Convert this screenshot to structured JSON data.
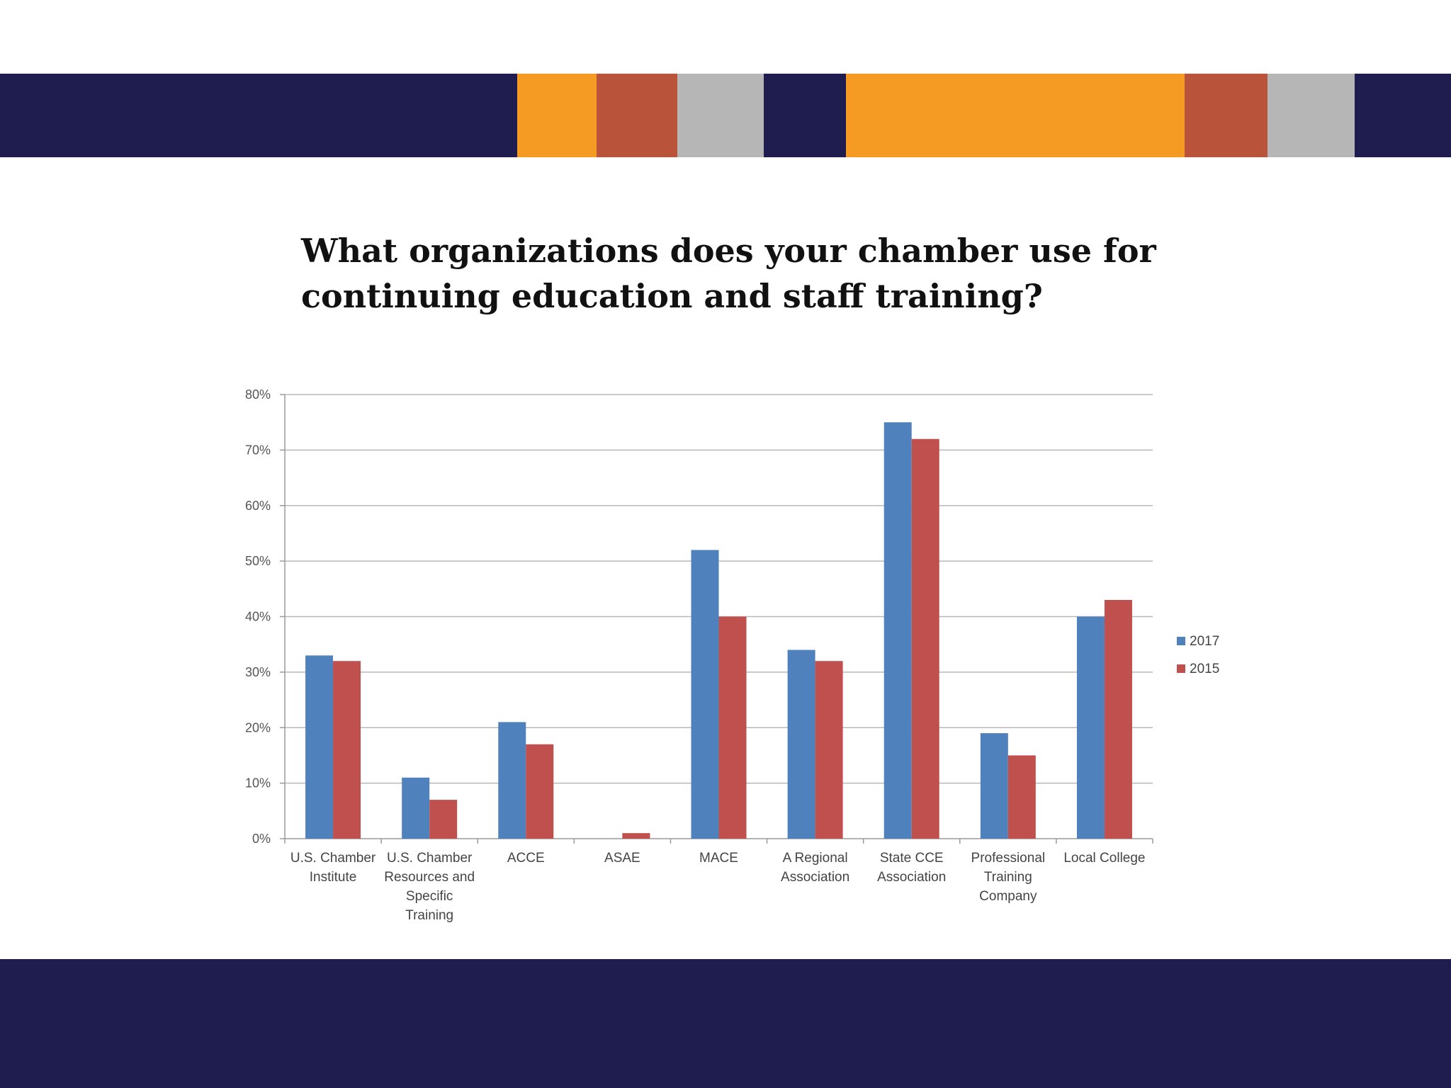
{
  "banner": {
    "navy": "#1f1c4f",
    "orange": "#f59a23",
    "rust": "#b9533a",
    "gray": "#b6b6b6"
  },
  "slide": {
    "title_line1": "What organizations does your chamber use for",
    "title_line2": "continuing education and staff training?"
  },
  "chart_data": {
    "type": "bar",
    "categories": [
      [
        "U.S. Chamber",
        "Institute"
      ],
      [
        "U.S. Chamber",
        "Resources and",
        "Specific",
        "Training"
      ],
      [
        "ACCE"
      ],
      [
        "ASAE"
      ],
      [
        "MACE"
      ],
      [
        "A Regional",
        "Association"
      ],
      [
        "State CCE",
        "Association"
      ],
      [
        "Professional",
        "Training",
        "Company"
      ],
      [
        "Local College"
      ]
    ],
    "series": [
      {
        "name": "2017",
        "color": "#4f81bd",
        "values": [
          33,
          11,
          21,
          0,
          52,
          34,
          75,
          19,
          40
        ]
      },
      {
        "name": "2015",
        "color": "#c0504d",
        "values": [
          32,
          7,
          17,
          1,
          40,
          32,
          72,
          15,
          43
        ]
      }
    ],
    "ylim": [
      0,
      80
    ],
    "yticks": [
      "0%",
      "10%",
      "20%",
      "30%",
      "40%",
      "50%",
      "60%",
      "70%",
      "80%"
    ],
    "grid": true,
    "legend_position": "right"
  }
}
